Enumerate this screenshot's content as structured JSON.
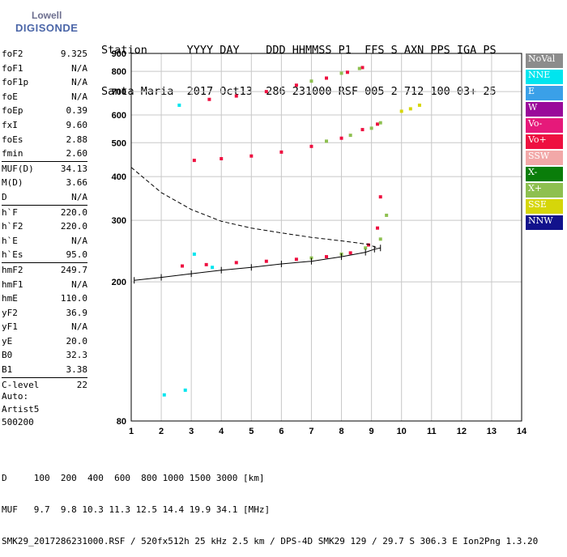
{
  "logo": {
    "line1": "Lowell",
    "line2": "DIGISONDE"
  },
  "header": {
    "line1": "Station      YYYY DAY    DDD HHMMSS P1  FFS S AXN PPS IGA PS",
    "line2": "Santa Maria  2017 Oct13  286 231000 RSF 005 2 712 100 03+ 25"
  },
  "params": [
    {
      "name": "foF2",
      "value": "9.325"
    },
    {
      "name": "foF1",
      "value": "N/A"
    },
    {
      "name": "foF1p",
      "value": "N/A"
    },
    {
      "name": "foE",
      "value": "N/A"
    },
    {
      "name": "foEp",
      "value": "0.39"
    },
    {
      "name": "fxI",
      "value": "9.60"
    },
    {
      "name": "foEs",
      "value": "2.88"
    },
    {
      "name": "fmin",
      "value": "2.60"
    },
    {
      "name": "MUF(D)",
      "value": "34.13",
      "sep": true
    },
    {
      "name": "M(D)",
      "value": "3.66"
    },
    {
      "name": "D",
      "value": "N/A"
    },
    {
      "name": "h`F",
      "value": "220.0",
      "sep": true
    },
    {
      "name": "h`F2",
      "value": "220.0"
    },
    {
      "name": "h`E",
      "value": "N/A"
    },
    {
      "name": "h`Es",
      "value": "95.0"
    },
    {
      "name": "hmF2",
      "value": "249.7",
      "sep": true
    },
    {
      "name": "hmF1",
      "value": "N/A"
    },
    {
      "name": "hmE",
      "value": "110.0"
    },
    {
      "name": "yF2",
      "value": "36.9"
    },
    {
      "name": "yF1",
      "value": "N/A"
    },
    {
      "name": "yE",
      "value": "20.0"
    },
    {
      "name": "B0",
      "value": "32.3"
    },
    {
      "name": "B1",
      "value": "3.38"
    },
    {
      "name": "C-level",
      "value": "22",
      "sep": true
    }
  ],
  "extra": {
    "auto": "Auto:",
    "artist": "Artist5",
    "code": "500200"
  },
  "legend": [
    {
      "label": "NoVal",
      "color": "#8c8c8c"
    },
    {
      "label": "NNE",
      "color": "#00e5ee"
    },
    {
      "label": "E",
      "color": "#3aa0e8"
    },
    {
      "label": "W",
      "color": "#9a0a9a"
    },
    {
      "label": "Vo-",
      "color": "#e6197a"
    },
    {
      "label": "Vo+",
      "color": "#ee1040"
    },
    {
      "label": "SSW",
      "color": "#f2a8a8"
    },
    {
      "label": "X-",
      "color": "#0a7d0a"
    },
    {
      "label": "X+",
      "color": "#8ec050"
    },
    {
      "label": "SSE",
      "color": "#d6d60a"
    },
    {
      "label": "NNW",
      "color": "#12128c"
    }
  ],
  "footer": {
    "line1": "D     100  200  400  600  800 1000 1500 3000 [km]",
    "line2": "MUF   9.7  9.8 10.3 11.3 12.5 14.4 19.9 34.1 [MHz]",
    "line3": "SMK29_2017286231000.RSF / 520fx512h 25 kHz 2.5 km / DPS-4D SMK29 129 / 29.7 S 306.3 E Ion2Png 1.3.20"
  },
  "chart_data": {
    "type": "scatter",
    "xlim": [
      1,
      14
    ],
    "ylim": [
      80,
      900
    ],
    "y_scale": "log",
    "x_ticks": [
      1,
      2,
      3,
      4,
      5,
      6,
      7,
      8,
      9,
      10,
      11,
      12,
      13,
      14
    ],
    "y_ticks": [
      80,
      200,
      300,
      400,
      500,
      600,
      700,
      800,
      900
    ],
    "grid": true,
    "legend_placement": "right",
    "series": [
      {
        "name": "Vo+",
        "color": "#ee1040",
        "points": [
          [
            2.7,
            222
          ],
          [
            3.5,
            224
          ],
          [
            4.5,
            227
          ],
          [
            5.5,
            229
          ],
          [
            6.5,
            232
          ],
          [
            7.5,
            236
          ],
          [
            8.3,
            242
          ],
          [
            8.9,
            255
          ],
          [
            9.2,
            285
          ],
          [
            9.3,
            350
          ],
          [
            3.1,
            445
          ],
          [
            4,
            450
          ],
          [
            5,
            458
          ],
          [
            6,
            470
          ],
          [
            7,
            488
          ],
          [
            8,
            515
          ],
          [
            8.7,
            545
          ],
          [
            9.2,
            565
          ],
          [
            3.6,
            665
          ],
          [
            4.5,
            680
          ],
          [
            5.5,
            700
          ],
          [
            6.5,
            730
          ],
          [
            7.5,
            765
          ],
          [
            8.2,
            795
          ],
          [
            8.7,
            820
          ]
        ]
      },
      {
        "name": "X+",
        "color": "#8ec050",
        "points": [
          [
            7,
            234
          ],
          [
            8,
            240
          ],
          [
            8.8,
            250
          ],
          [
            9.3,
            265
          ],
          [
            9.5,
            310
          ],
          [
            7.5,
            505
          ],
          [
            8.3,
            525
          ],
          [
            9,
            550
          ],
          [
            9.3,
            570
          ],
          [
            7,
            750
          ],
          [
            8,
            790
          ],
          [
            8.6,
            815
          ]
        ]
      },
      {
        "name": "SSE",
        "color": "#d6d60a",
        "points": [
          [
            10,
            615
          ],
          [
            10.3,
            625
          ],
          [
            10.6,
            640
          ]
        ]
      },
      {
        "name": "NNE",
        "color": "#00e5ee",
        "points": [
          [
            2.6,
            640
          ],
          [
            3.1,
            240
          ],
          [
            3.7,
            220
          ],
          [
            2.1,
            95
          ],
          [
            2.8,
            98
          ]
        ]
      }
    ],
    "curves": [
      {
        "name": "profile",
        "style": "dashed",
        "points": [
          [
            1,
            425
          ],
          [
            2,
            360
          ],
          [
            3,
            322
          ],
          [
            4,
            298
          ],
          [
            5,
            285
          ],
          [
            6,
            276
          ],
          [
            7,
            268
          ],
          [
            8,
            262
          ],
          [
            8.6,
            258
          ],
          [
            8.9,
            256
          ],
          [
            9.2,
            250
          ]
        ]
      },
      {
        "name": "trace",
        "style": "solid",
        "points": [
          [
            1.1,
            202
          ],
          [
            2,
            206
          ],
          [
            3,
            211
          ],
          [
            4,
            216
          ],
          [
            5,
            220
          ],
          [
            6,
            225
          ],
          [
            7,
            229
          ],
          [
            8,
            236
          ],
          [
            8.8,
            243
          ],
          [
            9.1,
            248
          ],
          [
            9.3,
            250
          ]
        ]
      }
    ]
  }
}
